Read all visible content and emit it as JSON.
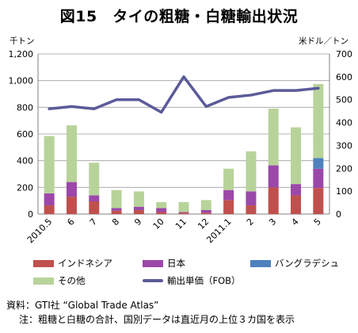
{
  "title": "図15　タイの粗糖・白糖輸出状況",
  "left_unit": "千トン",
  "right_unit": "米ドル／トン",
  "legend": {
    "indonesia": "インドネシア",
    "japan": "日本",
    "bangladesh": "バングラデシュ",
    "other": "その他",
    "price": "輸出単価（FOB）"
  },
  "notes": {
    "source": "資料：GTI社 “Global Trade Atlas”",
    "note": "注：粗糖と白糖の合計、国別データは直近月の上位３カ国を表示"
  },
  "colors": {
    "indonesia": "#c0504d",
    "japan": "#9b48a9",
    "bangladesh": "#4f81bd",
    "other": "#b8d39a",
    "price": "#5b5b9a"
  },
  "chart_data": {
    "type": "bar",
    "categories": [
      "2010.5",
      "6",
      "7",
      "8",
      "9",
      "10",
      "11",
      "12",
      "2011.1",
      "2",
      "3",
      "4",
      "5"
    ],
    "series": [
      {
        "name": "インドネシア",
        "values": [
          65,
          130,
          95,
          25,
          30,
          15,
          10,
          10,
          105,
          65,
          200,
          140,
          195
        ]
      },
      {
        "name": "日本",
        "values": [
          90,
          110,
          45,
          20,
          25,
          30,
          5,
          20,
          75,
          105,
          165,
          85,
          145
        ]
      },
      {
        "name": "バングラデシュ",
        "values": [
          0,
          0,
          0,
          0,
          0,
          0,
          0,
          0,
          0,
          0,
          0,
          0,
          80
        ]
      },
      {
        "name": "その他",
        "values": [
          430,
          425,
          245,
          135,
          115,
          45,
          75,
          75,
          160,
          300,
          425,
          425,
          555
        ]
      }
    ],
    "line_series": {
      "name": "輸出単価（FOB）",
      "axis": "right",
      "values": [
        460,
        470,
        460,
        500,
        500,
        445,
        600,
        470,
        510,
        520,
        540,
        540,
        550
      ]
    },
    "ylim": [
      0,
      1200
    ],
    "yticks": [
      "0",
      "200",
      "400",
      "600",
      "800",
      "1,000",
      "1,200"
    ],
    "y2lim": [
      0,
      700
    ],
    "y2ticks": [
      "0",
      "100",
      "200",
      "300",
      "400",
      "500",
      "600",
      "700"
    ],
    "grid": true
  }
}
